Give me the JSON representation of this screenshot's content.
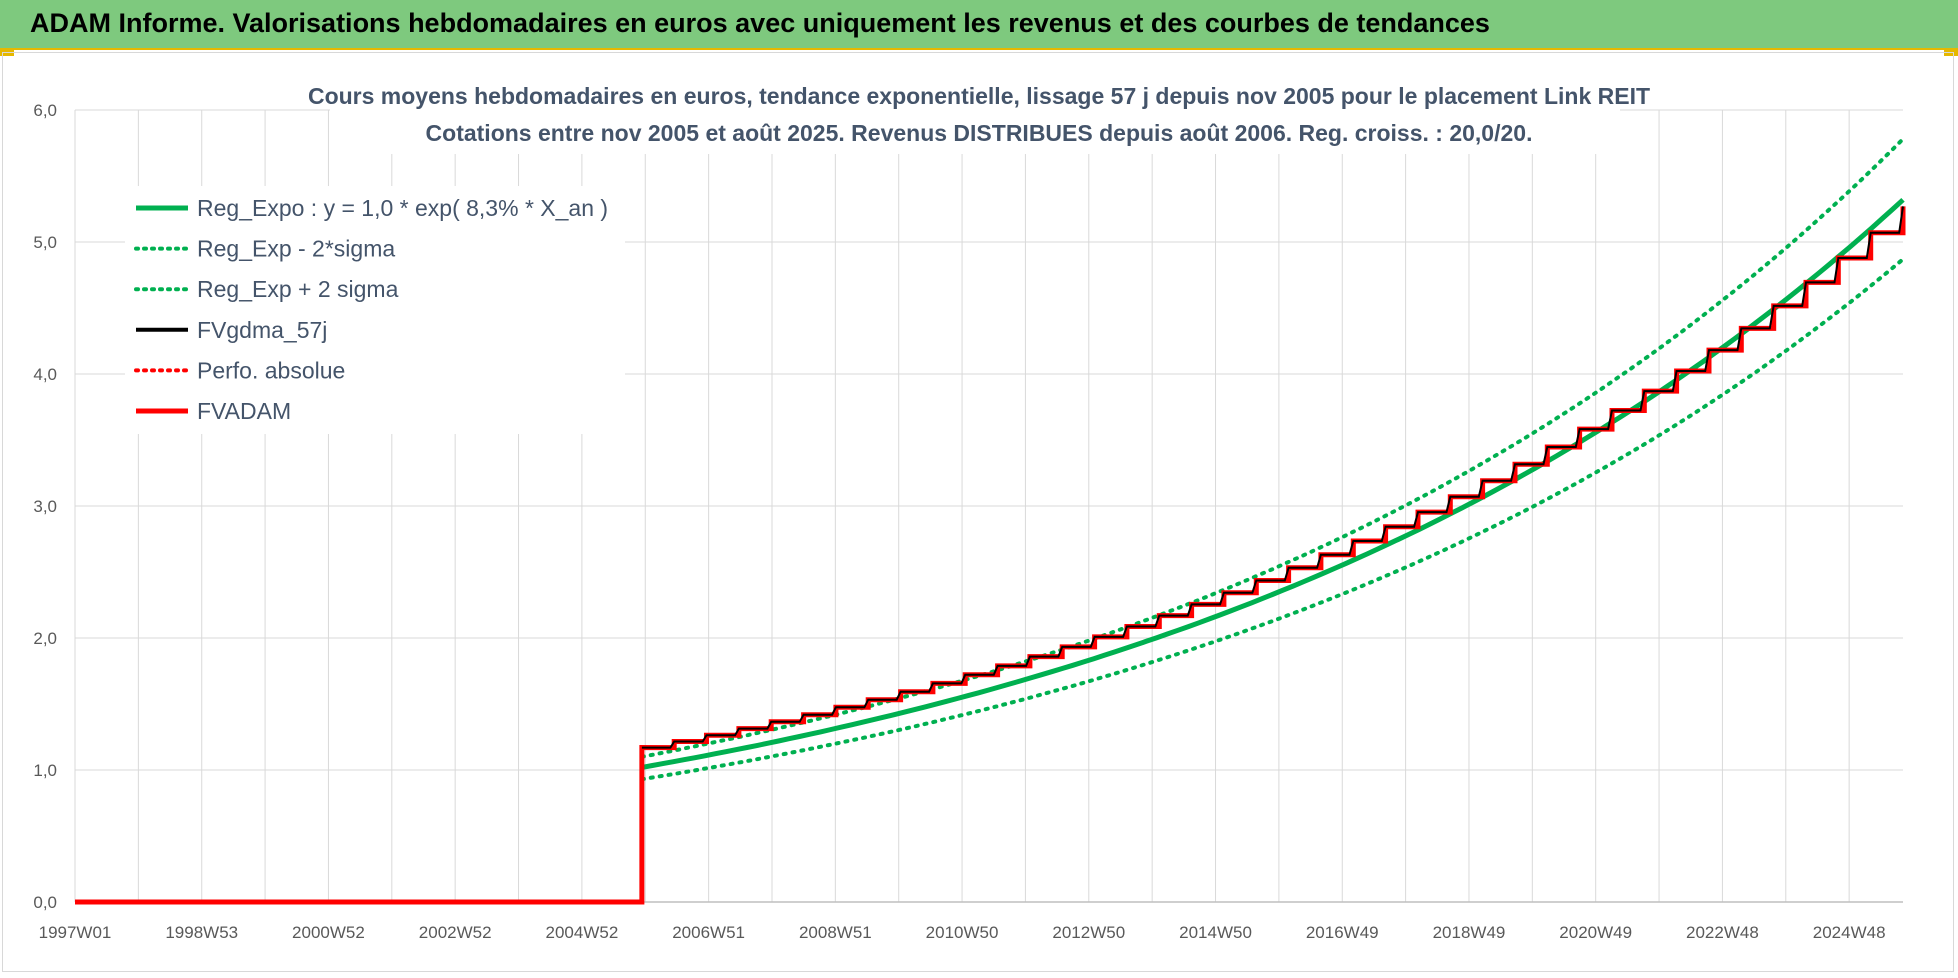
{
  "header": {
    "title": "ADAM Informe. Valorisations hebdomadaires en euros avec uniquement les revenus et des courbes de tendances"
  },
  "colors": {
    "title_bar": "#7ec97e",
    "regression": "#00b050",
    "fvgdma": "#000000",
    "red": "#ff0000",
    "grid": "#d9d9d9"
  },
  "chart_data": {
    "type": "line",
    "title_line1": "Cours moyens hebdomadaires en euros, tendance exponentielle, lissage 57 j depuis nov 2005 pour le placement Link REIT",
    "title_line2": "Cotations entre nov 2005 et août 2025.  Revenus DISTRIBUES depuis août 2006. Reg. croiss. : 20,0/20.",
    "x_tick_labels": [
      "1997W01",
      "1998W53",
      "2000W52",
      "2002W52",
      "2004W52",
      "2006W51",
      "2008W51",
      "2010W50",
      "2012W50",
      "2014W50",
      "2016W49",
      "2018W49",
      "2020W49",
      "2022W48",
      "2024W48"
    ],
    "x_range": [
      1997.0,
      2025.7
    ],
    "y_ticks": [
      "0,0",
      "1,0",
      "2,0",
      "3,0",
      "4,0",
      "5,0",
      "6,0"
    ],
    "ylim": [
      0,
      6
    ],
    "grid": true,
    "legend_position": "top-left",
    "legend": [
      {
        "label": "Reg_Expo : y = 1,0 * exp( 8,3% *  X_an )",
        "style": "solid-thick",
        "color": "#00b050"
      },
      {
        "label": "Reg_Exp - 2*sigma",
        "style": "dotted",
        "color": "#00b050"
      },
      {
        "label": "Reg_Exp + 2 sigma",
        "style": "dotted",
        "color": "#00b050"
      },
      {
        "label": "FVgdma_57j",
        "style": "solid",
        "color": "#000000"
      },
      {
        "label": "Perfo. absolue",
        "style": "dotted",
        "color": "#ff0000"
      },
      {
        "label": "FVADAM",
        "style": "solid-thick",
        "color": "#ff0000"
      }
    ],
    "series": [
      {
        "name": "Reg_Expo : y = 1,0 * exp( 8,3% *  X_an )",
        "x": [
          2005.9,
          2025.7
        ],
        "values": [
          1.02,
          5.32
        ]
      },
      {
        "name": "Reg_Exp - 2*sigma",
        "x": [
          2005.9,
          2025.7
        ],
        "values": [
          0.93,
          4.87
        ]
      },
      {
        "name": "Reg_Exp + 2 sigma",
        "x": [
          2005.9,
          2025.7
        ],
        "values": [
          1.1,
          5.78
        ]
      },
      {
        "name": "FVADAM",
        "x": [
          1997.0,
          2005.9,
          2005.9,
          2025.7
        ],
        "values": [
          0.0,
          0.0,
          1.17,
          5.27
        ]
      }
    ]
  }
}
